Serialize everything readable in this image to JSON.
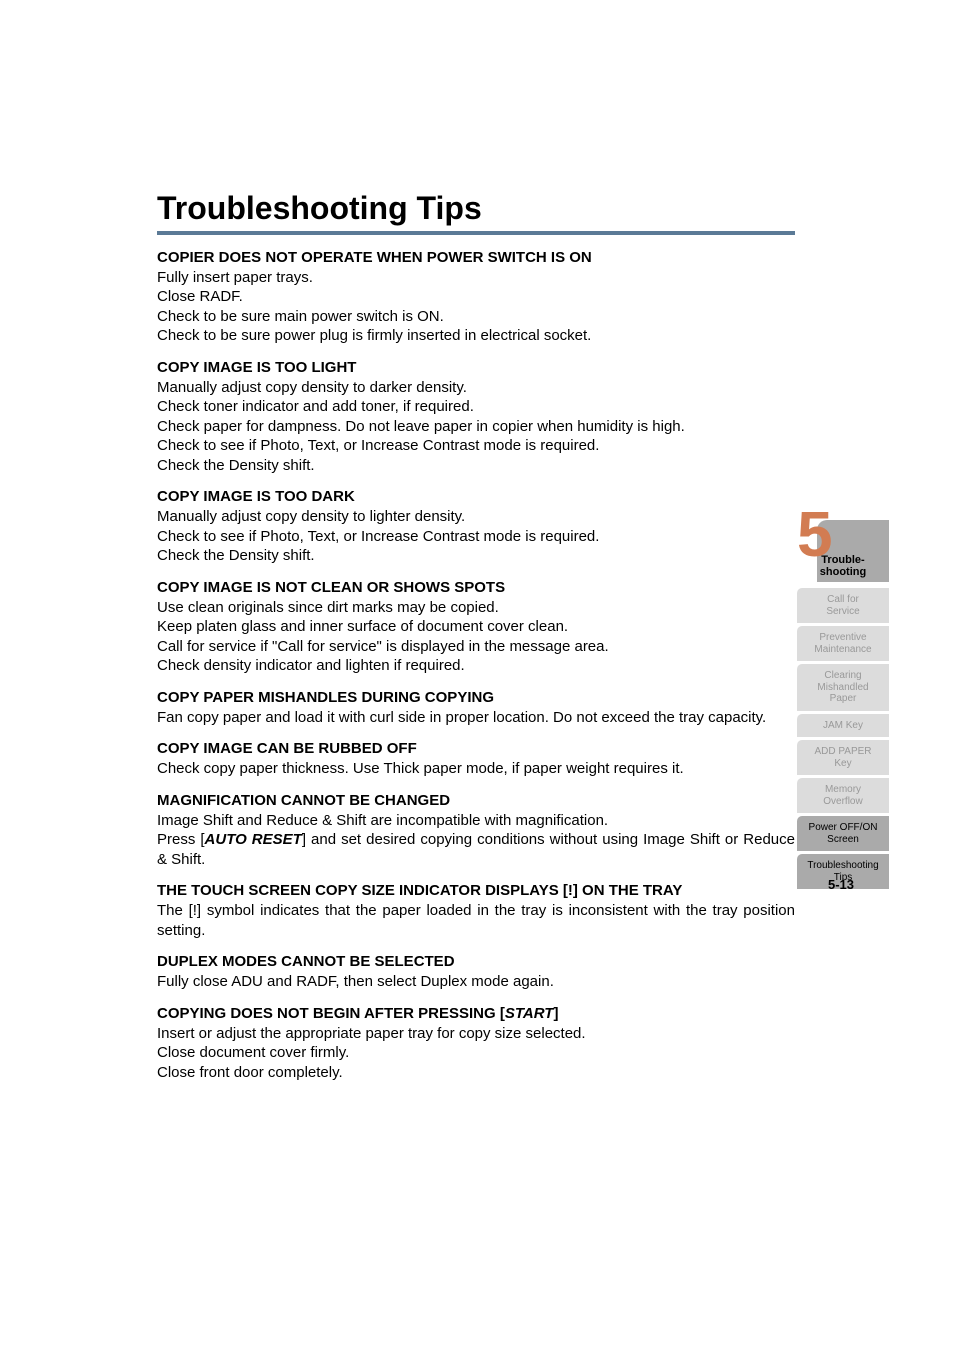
{
  "title": "Troubleshooting Tips",
  "sections": [
    {
      "heading": "COPIER DOES NOT OPERATE WHEN POWER SWITCH IS ON",
      "lines": [
        "Fully insert paper trays.",
        "Close RADF.",
        "Check to be sure main power switch is ON.",
        "Check to be sure power plug is firmly inserted in electrical socket."
      ]
    },
    {
      "heading": "COPY IMAGE IS TOO LIGHT",
      "lines": [
        "Manually adjust copy density to darker density.",
        "Check toner indicator and add toner, if required.",
        "Check paper for dampness. Do not leave paper in copier when humidity is high.",
        "Check to see if Photo, Text, or Increase Contrast mode is required.",
        "Check the Density shift."
      ]
    },
    {
      "heading": "COPY IMAGE IS TOO DARK",
      "lines": [
        "Manually adjust copy density to lighter density.",
        "Check to see if Photo, Text, or Increase Contrast mode is required.",
        "Check the Density shift."
      ]
    },
    {
      "heading": "COPY IMAGE IS NOT CLEAN OR SHOWS SPOTS",
      "lines": [
        "Use clean originals since dirt marks may be copied.",
        "Keep platen glass and inner surface of document cover clean.",
        "Call for service if \"Call for service\" is displayed in the message area.",
        "Check density indicator and lighten if required."
      ]
    },
    {
      "heading": "COPY PAPER MISHANDLES DURING COPYING",
      "para": "Fan copy paper and load it with curl side in proper location. Do not exceed the tray capacity."
    },
    {
      "heading": "COPY IMAGE CAN BE RUBBED OFF",
      "lines": [
        "Check copy paper thickness. Use Thick paper mode, if paper weight requires it."
      ]
    },
    {
      "heading": "MAGNIFICATION CANNOT BE CHANGED",
      "rich_para": {
        "pre": "Image Shift and Reduce & Shift are incompatible with magnification.\nPress [",
        "em": "AUTO RESET",
        "post": "] and set desired copying conditions without using Image Shift or Reduce & Shift."
      }
    },
    {
      "heading": "THE TOUCH SCREEN COPY SIZE INDICATOR DISPLAYS [!] ON THE TRAY",
      "para": "The [!] symbol indicates that the paper loaded in the tray is inconsistent with the tray position setting."
    },
    {
      "heading": "DUPLEX MODES CANNOT BE SELECTED",
      "lines": [
        "Fully close ADU and RADF, then select Duplex mode again."
      ]
    },
    {
      "heading_rich": {
        "pre": "COPYING DOES NOT BEGIN AFTER PRESSING [",
        "em": "START",
        "post": "]"
      },
      "lines": [
        "Insert or adjust the appropriate paper tray for copy size selected.",
        "Close document cover firmly.",
        "Close front door completely."
      ]
    }
  ],
  "chapter": {
    "number": "5",
    "label_line1": "Trouble-",
    "label_line2": "shooting"
  },
  "nav": [
    {
      "label": "Call for\nService",
      "active": false
    },
    {
      "label": "Preventive\nMaintenance",
      "active": false
    },
    {
      "label": "Clearing\nMishandled\nPaper",
      "active": false
    },
    {
      "label": "JAM Key",
      "active": false
    },
    {
      "label": "ADD PAPER\nKey",
      "active": false
    },
    {
      "label": "Memory\nOverflow",
      "active": false
    },
    {
      "label": "Power OFF/ON\nScreen",
      "active": true
    },
    {
      "label": "Troubleshooting\nTips",
      "active": true
    }
  ],
  "page_number": "5-13"
}
